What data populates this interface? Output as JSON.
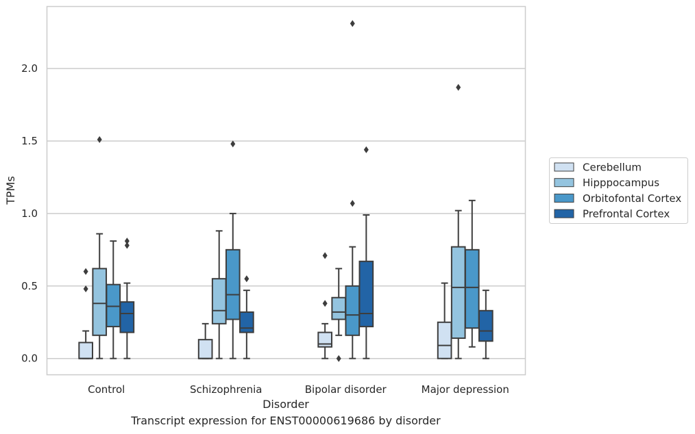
{
  "caption": "Transcript expression for ENST00000619686 by disorder",
  "chart_data": {
    "type": "box",
    "xlabel": "Disorder",
    "ylabel": "TPMs",
    "ylim": [
      -0.11,
      2.43
    ],
    "yticks": [
      0.0,
      0.5,
      1.0,
      1.5,
      2.0
    ],
    "ytick_labels": [
      "0.0",
      "0.5",
      "1.0",
      "1.5",
      "2.0"
    ],
    "grid": "horizontal",
    "legend_position": "right",
    "categories": [
      "Control",
      "Schizophrenia",
      "Bipolar disorder",
      "Major depression"
    ],
    "series": [
      {
        "name": "Cerebellum",
        "color": "#d0e1f2",
        "boxes": [
          {
            "whisker_low": 0.0,
            "q1": 0.0,
            "median": 0.0,
            "q3": 0.11,
            "whisker_high": 0.19,
            "outliers": [
              0.48,
              0.6
            ]
          },
          {
            "whisker_low": 0.0,
            "q1": 0.0,
            "median": 0.0,
            "q3": 0.13,
            "whisker_high": 0.24,
            "outliers": []
          },
          {
            "whisker_low": 0.0,
            "q1": 0.08,
            "median": 0.1,
            "q3": 0.18,
            "whisker_high": 0.24,
            "outliers": [
              0.38,
              0.71
            ]
          },
          {
            "whisker_low": 0.0,
            "q1": 0.0,
            "median": 0.09,
            "q3": 0.25,
            "whisker_high": 0.52,
            "outliers": []
          }
        ]
      },
      {
        "name": "Hipppocampus",
        "color": "#94c4df",
        "boxes": [
          {
            "whisker_low": 0.0,
            "q1": 0.16,
            "median": 0.38,
            "q3": 0.62,
            "whisker_high": 0.86,
            "outliers": [
              1.51
            ]
          },
          {
            "whisker_low": 0.0,
            "q1": 0.24,
            "median": 0.33,
            "q3": 0.55,
            "whisker_high": 0.88,
            "outliers": []
          },
          {
            "whisker_low": 0.16,
            "q1": 0.27,
            "median": 0.32,
            "q3": 0.42,
            "whisker_high": 0.62,
            "outliers": [
              0.0
            ]
          },
          {
            "whisker_low": 0.0,
            "q1": 0.14,
            "median": 0.49,
            "q3": 0.77,
            "whisker_high": 1.02,
            "outliers": [
              1.87
            ]
          }
        ]
      },
      {
        "name": "Orbitofontal Cortex",
        "color": "#4a98c9",
        "boxes": [
          {
            "whisker_low": 0.0,
            "q1": 0.22,
            "median": 0.36,
            "q3": 0.51,
            "whisker_high": 0.81,
            "outliers": []
          },
          {
            "whisker_low": 0.0,
            "q1": 0.27,
            "median": 0.44,
            "q3": 0.75,
            "whisker_high": 1.0,
            "outliers": [
              1.48
            ]
          },
          {
            "whisker_low": 0.0,
            "q1": 0.16,
            "median": 0.3,
            "q3": 0.5,
            "whisker_high": 0.77,
            "outliers": [
              1.07,
              2.31
            ]
          },
          {
            "whisker_low": 0.08,
            "q1": 0.21,
            "median": 0.49,
            "q3": 0.75,
            "whisker_high": 1.09,
            "outliers": []
          }
        ]
      },
      {
        "name": "Prefrontal Cortex",
        "color": "#2264a6",
        "boxes": [
          {
            "whisker_low": 0.0,
            "q1": 0.18,
            "median": 0.31,
            "q3": 0.39,
            "whisker_high": 0.52,
            "outliers": [
              0.78,
              0.81
            ]
          },
          {
            "whisker_low": 0.0,
            "q1": 0.18,
            "median": 0.21,
            "q3": 0.32,
            "whisker_high": 0.47,
            "outliers": [
              0.55
            ]
          },
          {
            "whisker_low": 0.0,
            "q1": 0.22,
            "median": 0.31,
            "q3": 0.67,
            "whisker_high": 0.99,
            "outliers": [
              1.44
            ]
          },
          {
            "whisker_low": 0.0,
            "q1": 0.12,
            "median": 0.19,
            "q3": 0.33,
            "whisker_high": 0.47,
            "outliers": []
          }
        ]
      }
    ]
  }
}
